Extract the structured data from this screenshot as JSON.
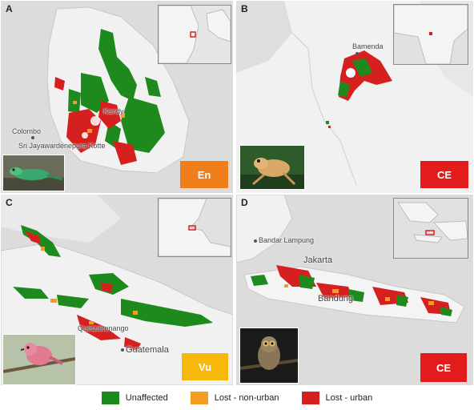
{
  "panels": [
    {
      "label": "A",
      "status": "En",
      "status_color": "#f07f1b",
      "cities": [
        "Colombo",
        "Sri Jayawardenepura Kotte",
        "Kandy"
      ]
    },
    {
      "label": "B",
      "status": "CE",
      "status_color": "#e21c1c",
      "cities": [
        "Bamenda"
      ]
    },
    {
      "label": "C",
      "status": "Vu",
      "status_color": "#f7b90b",
      "cities": [
        "Quetzaltenango",
        "Guatemala"
      ]
    },
    {
      "label": "D",
      "status": "CE",
      "status_color": "#e21c1c",
      "cities": [
        "Bandar Lampung",
        "Jakarta",
        "Bandung"
      ]
    }
  ],
  "legend": [
    {
      "label": "Unaffected",
      "color": "#1e8a1e"
    },
    {
      "label": "Lost - non-urban",
      "color": "#f39c1f"
    },
    {
      "label": "Lost - urban",
      "color": "#d62020"
    }
  ],
  "icons": {
    "photo_a": "lizard-photo",
    "photo_b": "frog-photo",
    "photo_c": "bird-photo",
    "photo_d": "loris-photo"
  }
}
